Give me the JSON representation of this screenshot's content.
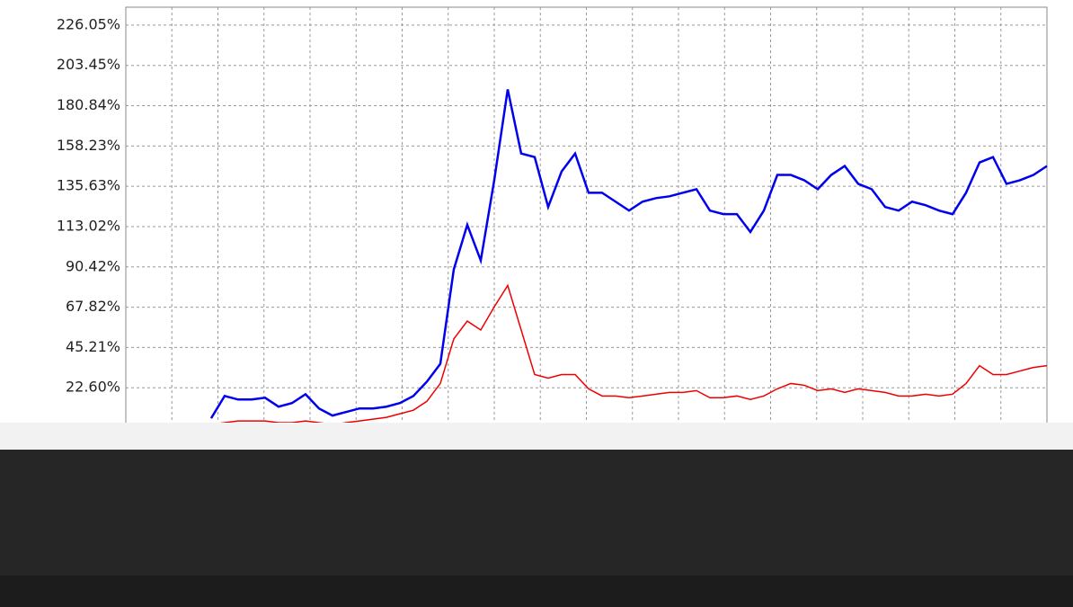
{
  "chart_data": {
    "type": "line",
    "x": [
      0,
      1,
      2,
      3,
      4,
      5,
      6,
      7,
      8,
      9,
      10,
      11,
      12,
      13,
      14,
      15,
      16,
      17,
      18,
      19,
      20,
      21,
      22,
      23,
      24,
      25,
      26,
      27,
      28,
      29,
      30,
      31,
      32,
      33,
      34,
      35,
      36,
      37,
      38,
      39,
      40,
      41,
      42,
      43,
      44,
      45,
      46,
      47,
      48,
      49,
      50,
      51,
      52,
      53,
      54,
      55,
      56,
      57,
      58,
      59,
      60,
      61,
      62
    ],
    "xlim": [
      -6.33,
      62
    ],
    "ylim": [
      0,
      236.1
    ],
    "yticks": [
      {
        "value": 22.6,
        "label": "22.60%"
      },
      {
        "value": 45.21,
        "label": "45.21%"
      },
      {
        "value": 67.82,
        "label": "67.82%"
      },
      {
        "value": 90.42,
        "label": "90.42%"
      },
      {
        "value": 113.02,
        "label": "113.02%"
      },
      {
        "value": 135.63,
        "label": "135.63%"
      },
      {
        "value": 158.23,
        "label": "158.23%"
      },
      {
        "value": 180.84,
        "label": "180.84%"
      },
      {
        "value": 203.45,
        "label": "203.45%"
      },
      {
        "value": 226.05,
        "label": "226.05%"
      }
    ],
    "grid": true,
    "series": [
      {
        "color": "#0000ee",
        "values": [
          5.5,
          18,
          16,
          16,
          17,
          12,
          14,
          19,
          11,
          7,
          9,
          11,
          11,
          12,
          14,
          18,
          26,
          36,
          89,
          114,
          94,
          139,
          190,
          154,
          152,
          124,
          144,
          154,
          132,
          132,
          127,
          122,
          127,
          129,
          130,
          132,
          134,
          122,
          120,
          120,
          110,
          122,
          142,
          142,
          139,
          134,
          142,
          147,
          137,
          134,
          124,
          122,
          127,
          125,
          122,
          120,
          132,
          149,
          152,
          137,
          139,
          142,
          147
        ]
      },
      {
        "color": "#ee0000",
        "values": [
          2,
          3,
          4,
          4,
          4,
          3,
          3,
          4,
          3,
          2,
          3,
          4,
          5,
          6,
          8,
          10,
          15,
          25,
          50,
          60,
          55,
          68,
          80,
          55,
          30,
          28,
          30,
          30,
          22,
          18,
          18,
          17,
          18,
          19,
          20,
          20,
          21,
          17,
          17,
          18,
          16,
          18,
          22,
          25,
          24,
          21,
          22,
          20,
          22,
          21,
          20,
          18,
          18,
          19,
          18,
          19,
          25,
          35,
          30,
          30,
          32,
          34,
          35
        ]
      }
    ]
  }
}
